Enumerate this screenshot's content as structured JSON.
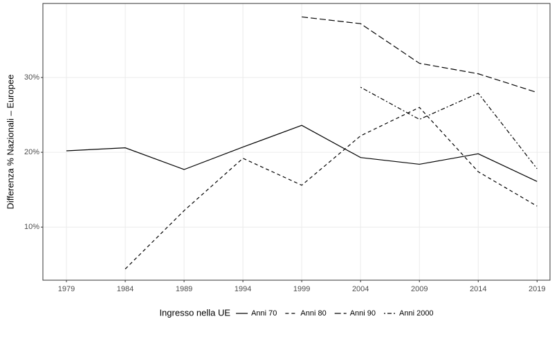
{
  "chart_data": {
    "type": "line",
    "y_label": "Differenza % Nazionali – Europee",
    "legend_title": "Ingresso nella UE",
    "legend_position": "bottom",
    "grid": true,
    "x": [
      1979,
      1984,
      1989,
      1994,
      1999,
      2004,
      2009,
      2014,
      2019
    ],
    "xlim": [
      1977,
      2020.1
    ],
    "xticks": [
      1979,
      1984,
      1989,
      1994,
      1999,
      2004,
      2009,
      2014,
      2019
    ],
    "ylim": [
      2.9,
      39.9
    ],
    "yticks": [
      {
        "value": 10,
        "label": "10%"
      },
      {
        "value": 20,
        "label": "20%"
      },
      {
        "value": 30,
        "label": "30%"
      }
    ],
    "series": [
      {
        "name": "Anni 70",
        "color": "#000000",
        "linestyle": "solid",
        "values": [
          20.2,
          20.6,
          17.7,
          20.7,
          23.6,
          19.3,
          18.4,
          19.8,
          16.1
        ]
      },
      {
        "name": "Anni 80",
        "color": "#000000",
        "linestyle": "dashed",
        "values": [
          null,
          4.4,
          12.2,
          19.2,
          15.6,
          22.2,
          26.0,
          17.4,
          12.8
        ]
      },
      {
        "name": "Anni 90",
        "color": "#000000",
        "linestyle": "longdash",
        "values": [
          null,
          null,
          null,
          null,
          38.1,
          37.2,
          31.9,
          30.5,
          28.0
        ]
      },
      {
        "name": "Anni 2000",
        "color": "#000000",
        "linestyle": "dotdash",
        "values": [
          null,
          null,
          null,
          null,
          null,
          28.7,
          24.4,
          27.9,
          17.8
        ]
      }
    ]
  }
}
